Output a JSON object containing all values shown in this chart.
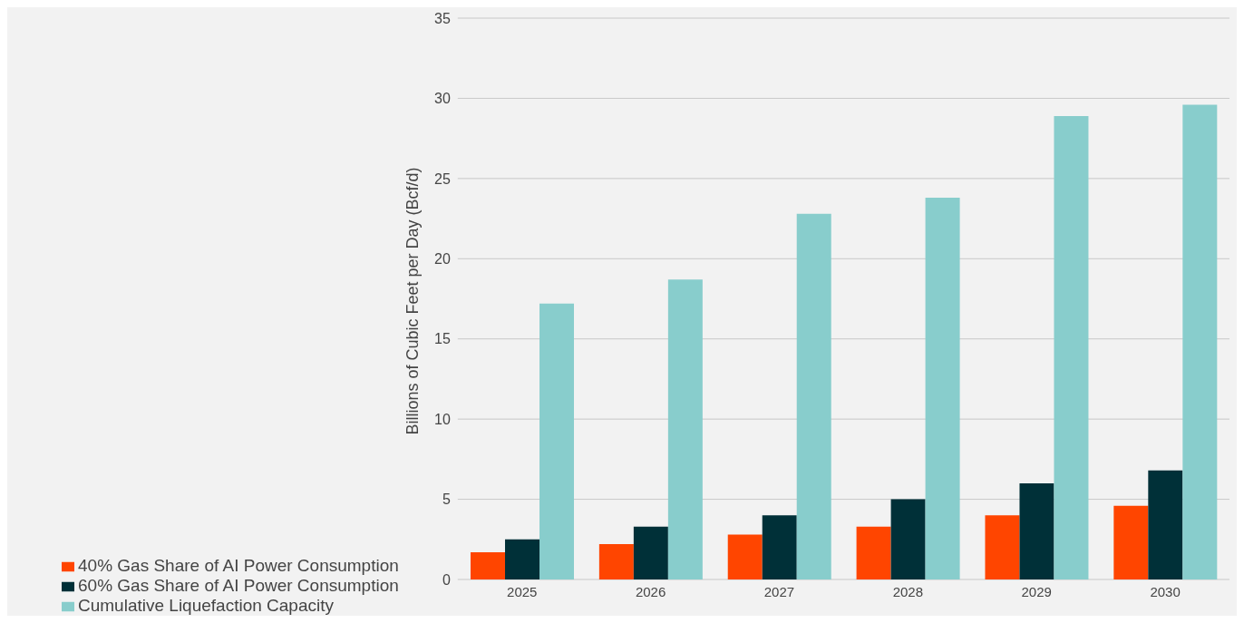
{
  "chart_data": {
    "type": "bar",
    "ylabel": "Billions of Cubic Feet per Day (Bcf/d)",
    "categories": [
      "2025",
      "2026",
      "2027",
      "2028",
      "2029",
      "2030"
    ],
    "series": [
      {
        "name": "40% Gas Share of AI Power Consumption",
        "color": "#ff4500",
        "values": [
          1.7,
          2.2,
          2.8,
          3.3,
          4.0,
          4.6
        ]
      },
      {
        "name": "60% Gas Share of AI Power Consumption",
        "color": "#003038",
        "values": [
          2.5,
          3.3,
          4.0,
          5.0,
          6.0,
          6.8
        ]
      },
      {
        "name": "Cumulative Liquefaction Capacity",
        "color": "#88cdcc",
        "values": [
          17.2,
          18.7,
          22.8,
          23.8,
          28.9,
          29.6
        ]
      }
    ],
    "ylim": [
      0,
      35
    ],
    "yticks": [
      0,
      5,
      10,
      15,
      20,
      25,
      30,
      35
    ],
    "grid": "y",
    "legend": "bottom left"
  }
}
